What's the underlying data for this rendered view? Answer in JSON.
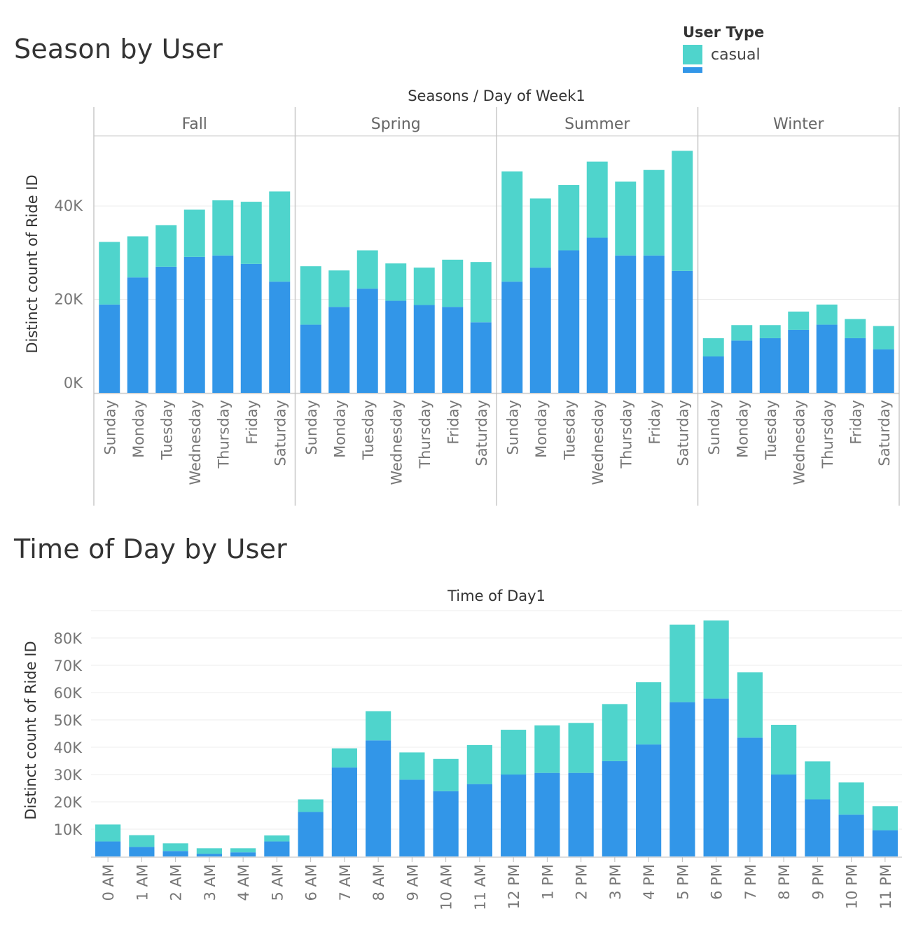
{
  "charts_titles": {
    "top": "Season by User",
    "bottom": "Time of Day by User"
  },
  "legend": {
    "title": "User Type",
    "items": [
      {
        "label": "casual",
        "color": "#4fd4cc"
      },
      {
        "label": "",
        "color": "#3296e8"
      }
    ]
  },
  "colors": {
    "casual": "#4fd4cc",
    "member": "#3296e8",
    "grid": "#ececec",
    "divider": "#c8c8c8"
  },
  "chart_data": [
    {
      "type": "bar",
      "stacked": true,
      "title": "Season by User",
      "header": "Seasons  /  Day of Week1",
      "ylabel": "Distinct count of Ride ID",
      "yticks": [
        0,
        20000,
        40000
      ],
      "ytick_labels": [
        "0K",
        "20K",
        "40K"
      ],
      "ylim": [
        0,
        55000
      ],
      "panels": [
        "Fall",
        "Spring",
        "Summer",
        "Winter"
      ],
      "categories": [
        "Sunday",
        "Monday",
        "Tuesday",
        "Wednesday",
        "Thursday",
        "Friday",
        "Saturday"
      ],
      "series": [
        {
          "name": "",
          "values": [
            [
              18900,
              24700,
              27000,
              29100,
              29400,
              27600,
              23800
            ],
            [
              14600,
              18400,
              22300,
              19700,
              18800,
              18400,
              15100
            ],
            [
              23800,
              26800,
              30500,
              33200,
              29400,
              29400,
              26100
            ],
            [
              7800,
              11200,
              11700,
              13500,
              14600,
              11700,
              9300
            ]
          ]
        },
        {
          "name": "casual",
          "values": [
            [
              13400,
              8800,
              8900,
              10100,
              11800,
              13300,
              19300
            ],
            [
              12500,
              7800,
              8200,
              8000,
              8000,
              10100,
              12900
            ],
            [
              23600,
              14800,
              14000,
              16300,
              15800,
              18300,
              25700
            ],
            [
              3900,
              3300,
              2800,
              3900,
              4300,
              4100,
              5000
            ]
          ]
        }
      ]
    },
    {
      "type": "bar",
      "stacked": true,
      "title": "Time of Day by User",
      "header": "Time of Day1",
      "ylabel": "Distinct count of Ride ID",
      "yticks": [
        10000,
        20000,
        30000,
        40000,
        50000,
        60000,
        70000,
        80000
      ],
      "ytick_labels": [
        "10K",
        "20K",
        "30K",
        "40K",
        "50K",
        "60K",
        "70K",
        "80K"
      ],
      "ylim": [
        0,
        90000
      ],
      "categories": [
        "0 AM",
        "1 AM",
        "2 AM",
        "3 AM",
        "4 AM",
        "5 AM",
        "6 AM",
        "7 AM",
        "8 AM",
        "9 AM",
        "10 AM",
        "11 AM",
        "12 PM",
        "1 PM",
        "2 PM",
        "3 PM",
        "4 PM",
        "5 PM",
        "6 PM",
        "7 PM",
        "8 PM",
        "9 PM",
        "10 PM",
        "11 PM"
      ],
      "series": [
        {
          "name": "",
          "values": [
            5500,
            3500,
            2000,
            1000,
            1500,
            5500,
            16300,
            32600,
            42500,
            28100,
            23900,
            26500,
            30000,
            30600,
            30600,
            34900,
            41000,
            56500,
            57800,
            43500,
            30000,
            20900,
            15300,
            9600
          ]
        },
        {
          "name": "casual",
          "values": [
            6200,
            4300,
            2800,
            2000,
            1500,
            2200,
            4600,
            7000,
            10700,
            10000,
            11800,
            14300,
            16400,
            17400,
            18300,
            20900,
            22800,
            28400,
            28600,
            23900,
            18200,
            13900,
            11800,
            8800
          ]
        }
      ]
    }
  ]
}
